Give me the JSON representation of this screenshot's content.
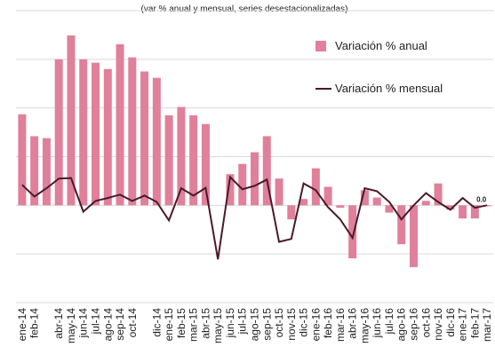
{
  "chart_data": {
    "type": "bar_line",
    "subtitle": "(var % anual y mensual, series desestacionalizadas)",
    "categories": [
      "ene-14",
      "feb-14",
      null,
      "abr-14",
      "may-14",
      "jun-14",
      "jul-14",
      "ago-14",
      "sep-14",
      "oct-14",
      null,
      "dic-14",
      "ene-15",
      "feb-15",
      "mar-15",
      "abr-15",
      "may-15",
      "jun-15",
      "jul-15",
      "ago-15",
      "sep-15",
      "oct-15",
      "nov-15",
      "dic-15",
      "ene-16",
      "feb-16",
      "mar-16",
      "abr-16",
      "may-16",
      "jun-16",
      "jul-16",
      "ago-16",
      "sep-16",
      "oct-16",
      "nov-16",
      "dic-16",
      "ene-17",
      "feb-17",
      "mar-17"
    ],
    "series": [
      {
        "name": "Variación % anual",
        "kind": "bar",
        "color": "#e0809a",
        "values": [
          1.87,
          1.42,
          1.38,
          3.0,
          3.49,
          3.0,
          2.93,
          2.8,
          3.31,
          3.04,
          2.75,
          2.62,
          1.85,
          2.02,
          1.85,
          1.67,
          0,
          0.64,
          0.85,
          1.09,
          1.42,
          0.55,
          -0.29,
          0.13,
          0.76,
          0.38,
          -0.05,
          -1.09,
          0.31,
          0.16,
          -0.15,
          -0.8,
          -1.27,
          0.09,
          0.45,
          -0.09,
          -0.27,
          -0.27,
          -0.02
        ]
      },
      {
        "name": "Variación % mensual",
        "kind": "line",
        "color": "#4a1a2b",
        "values": [
          0.42,
          0.18,
          0.35,
          0.55,
          0.56,
          -0.13,
          0.09,
          0.15,
          0.22,
          0.09,
          0.2,
          0.07,
          -0.31,
          0.35,
          0.2,
          0.36,
          -1.11,
          0.58,
          0.33,
          0.4,
          0.53,
          -0.75,
          -0.69,
          0.45,
          0.31,
          -0.04,
          -0.29,
          -0.67,
          0.35,
          0.29,
          0.07,
          -0.29,
          0,
          0.25,
          0.07,
          -0.09,
          0.15,
          -0.05,
          0
        ],
        "last_label": "0.0"
      }
    ],
    "ylim": [
      -2,
      4
    ],
    "yticks": [
      -2,
      -1,
      0,
      1,
      2,
      3,
      4
    ],
    "grid": true
  }
}
